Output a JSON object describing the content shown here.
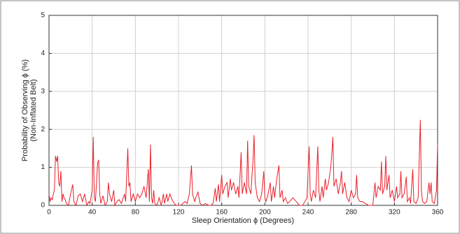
{
  "chart_data": {
    "type": "line",
    "xlabel": "Sleep Orientation ϕ (Degrees)",
    "ylabel": [
      "Probability of Observing ϕ (%)",
      "(Non-Inflated Belt)"
    ],
    "xlim": [
      0,
      360
    ],
    "xticks": [
      0,
      40,
      80,
      120,
      160,
      200,
      240,
      280,
      320,
      360
    ],
    "ylim": [
      0,
      5
    ],
    "yticks": [
      0,
      1,
      2,
      3,
      4,
      5
    ],
    "grid": true,
    "series": [
      {
        "color": "#e8202a",
        "x": [
          0,
          1,
          2,
          3,
          4,
          5,
          6,
          7,
          8,
          9,
          10,
          11,
          12,
          13,
          14,
          15,
          16,
          18,
          20,
          22,
          23,
          25,
          27,
          29,
          31,
          33,
          35,
          37,
          38,
          40,
          41,
          42,
          43,
          45,
          46,
          47,
          48,
          50,
          52,
          54,
          55,
          56,
          58,
          60,
          61,
          63,
          65,
          67,
          70,
          71,
          73,
          74,
          75,
          76,
          78,
          80,
          82,
          84,
          86,
          88,
          90,
          92,
          93,
          94,
          95,
          96,
          97,
          98,
          100,
          102,
          104,
          106,
          107,
          109,
          110,
          112,
          114,
          116,
          118,
          120,
          122,
          124,
          126,
          128,
          130,
          132,
          133,
          135,
          136,
          138,
          140,
          142,
          145,
          148,
          150,
          152,
          154,
          155,
          157,
          158,
          160,
          161,
          163,
          165,
          166,
          168,
          169,
          171,
          173,
          175,
          176,
          178,
          179,
          181,
          183,
          184,
          185,
          187,
          189,
          190,
          191,
          193,
          195,
          197,
          199,
          200,
          201,
          203,
          205,
          206,
          208,
          209,
          211,
          213,
          214,
          216,
          217,
          219,
          221,
          223,
          226,
          229,
          232,
          235,
          237,
          239,
          241,
          242,
          243,
          245,
          247,
          249,
          250,
          251,
          253,
          254,
          256,
          257,
          259,
          261,
          262,
          263,
          264,
          266,
          268,
          270,
          271,
          272,
          274,
          276,
          278,
          280,
          282,
          284,
          285,
          286,
          288,
          290,
          293,
          296,
          300,
          302,
          303,
          305,
          307,
          308,
          309,
          311,
          312,
          313,
          315,
          316,
          318,
          320,
          322,
          323,
          325,
          326,
          327,
          329,
          331,
          332,
          334,
          335,
          337,
          338,
          340,
          342,
          344,
          345,
          346,
          348,
          350,
          352,
          353,
          354,
          355,
          357,
          359,
          360
        ],
        "values": [
          0.3,
          0.1,
          0.2,
          0.15,
          0.3,
          0.4,
          1.3,
          1.15,
          1.3,
          0.6,
          0.5,
          0.9,
          0.1,
          0.3,
          0.2,
          0.15,
          0.05,
          0,
          0.3,
          0.55,
          0.1,
          0,
          0.25,
          0.3,
          0.1,
          0.3,
          0,
          0.1,
          0.05,
          0.4,
          1.8,
          0.2,
          0.1,
          1.1,
          1.2,
          0.3,
          0.05,
          0.25,
          0,
          0.1,
          0.6,
          0.3,
          0.1,
          0.4,
          0,
          0.1,
          0.15,
          0.05,
          0.3,
          0.1,
          1.5,
          0.5,
          0.6,
          0.1,
          0.3,
          0.1,
          0.3,
          0.2,
          0.3,
          0.5,
          0.2,
          0.95,
          0.1,
          1.6,
          0.2,
          0.05,
          0.4,
          0.05,
          0,
          0.2,
          0,
          0.3,
          0.05,
          0.3,
          0.1,
          0.3,
          0.15,
          0.05,
          0,
          0,
          0,
          0.05,
          0.1,
          0.05,
          0.3,
          1.05,
          0.3,
          0.1,
          0.2,
          0.35,
          0.05,
          0,
          0.05,
          0,
          0,
          0.05,
          0.45,
          0.1,
          0.55,
          0.1,
          0.8,
          0.3,
          0.5,
          0.6,
          0.2,
          0.7,
          0.4,
          0.6,
          0.3,
          0.5,
          0.2,
          1.4,
          0.3,
          0.6,
          0.3,
          1.7,
          0.5,
          0.3,
          1.2,
          1.85,
          0.6,
          0.2,
          0.1,
          0.3,
          0.9,
          0.2,
          0.1,
          0.3,
          0.6,
          0.1,
          0.5,
          0.2,
          0.7,
          1.05,
          0.2,
          0.4,
          0.1,
          0.2,
          0.05,
          0.1,
          0.2,
          0.1,
          0,
          0,
          0.1,
          0.2,
          1.55,
          0.3,
          0.1,
          0.4,
          0.2,
          1.55,
          0.4,
          0.1,
          0.5,
          0.2,
          0.7,
          0.4,
          0.6,
          1.0,
          1.35,
          1.8,
          0.5,
          0.7,
          0.3,
          0.6,
          0.9,
          0.3,
          0.6,
          0.2,
          0.1,
          0.4,
          0.2,
          0.3,
          0.8,
          0.2,
          0.1,
          0.1,
          0.05,
          0,
          0,
          0.6,
          0.2,
          0.5,
          0.4,
          1.15,
          0.3,
          0.5,
          1.3,
          0.4,
          0.8,
          0.2,
          0.4,
          0.1,
          0.5,
          0.2,
          0.3,
          0.9,
          0.2,
          0.3,
          0.75,
          0.1,
          0.2,
          0.05,
          0.95,
          0.1,
          0.05,
          0.2,
          2.25,
          0.4,
          0.1,
          0.05,
          0.1,
          0.6,
          0.3,
          0.6,
          0.1,
          0.05,
          0.4,
          1.6
        ]
      }
    ]
  }
}
